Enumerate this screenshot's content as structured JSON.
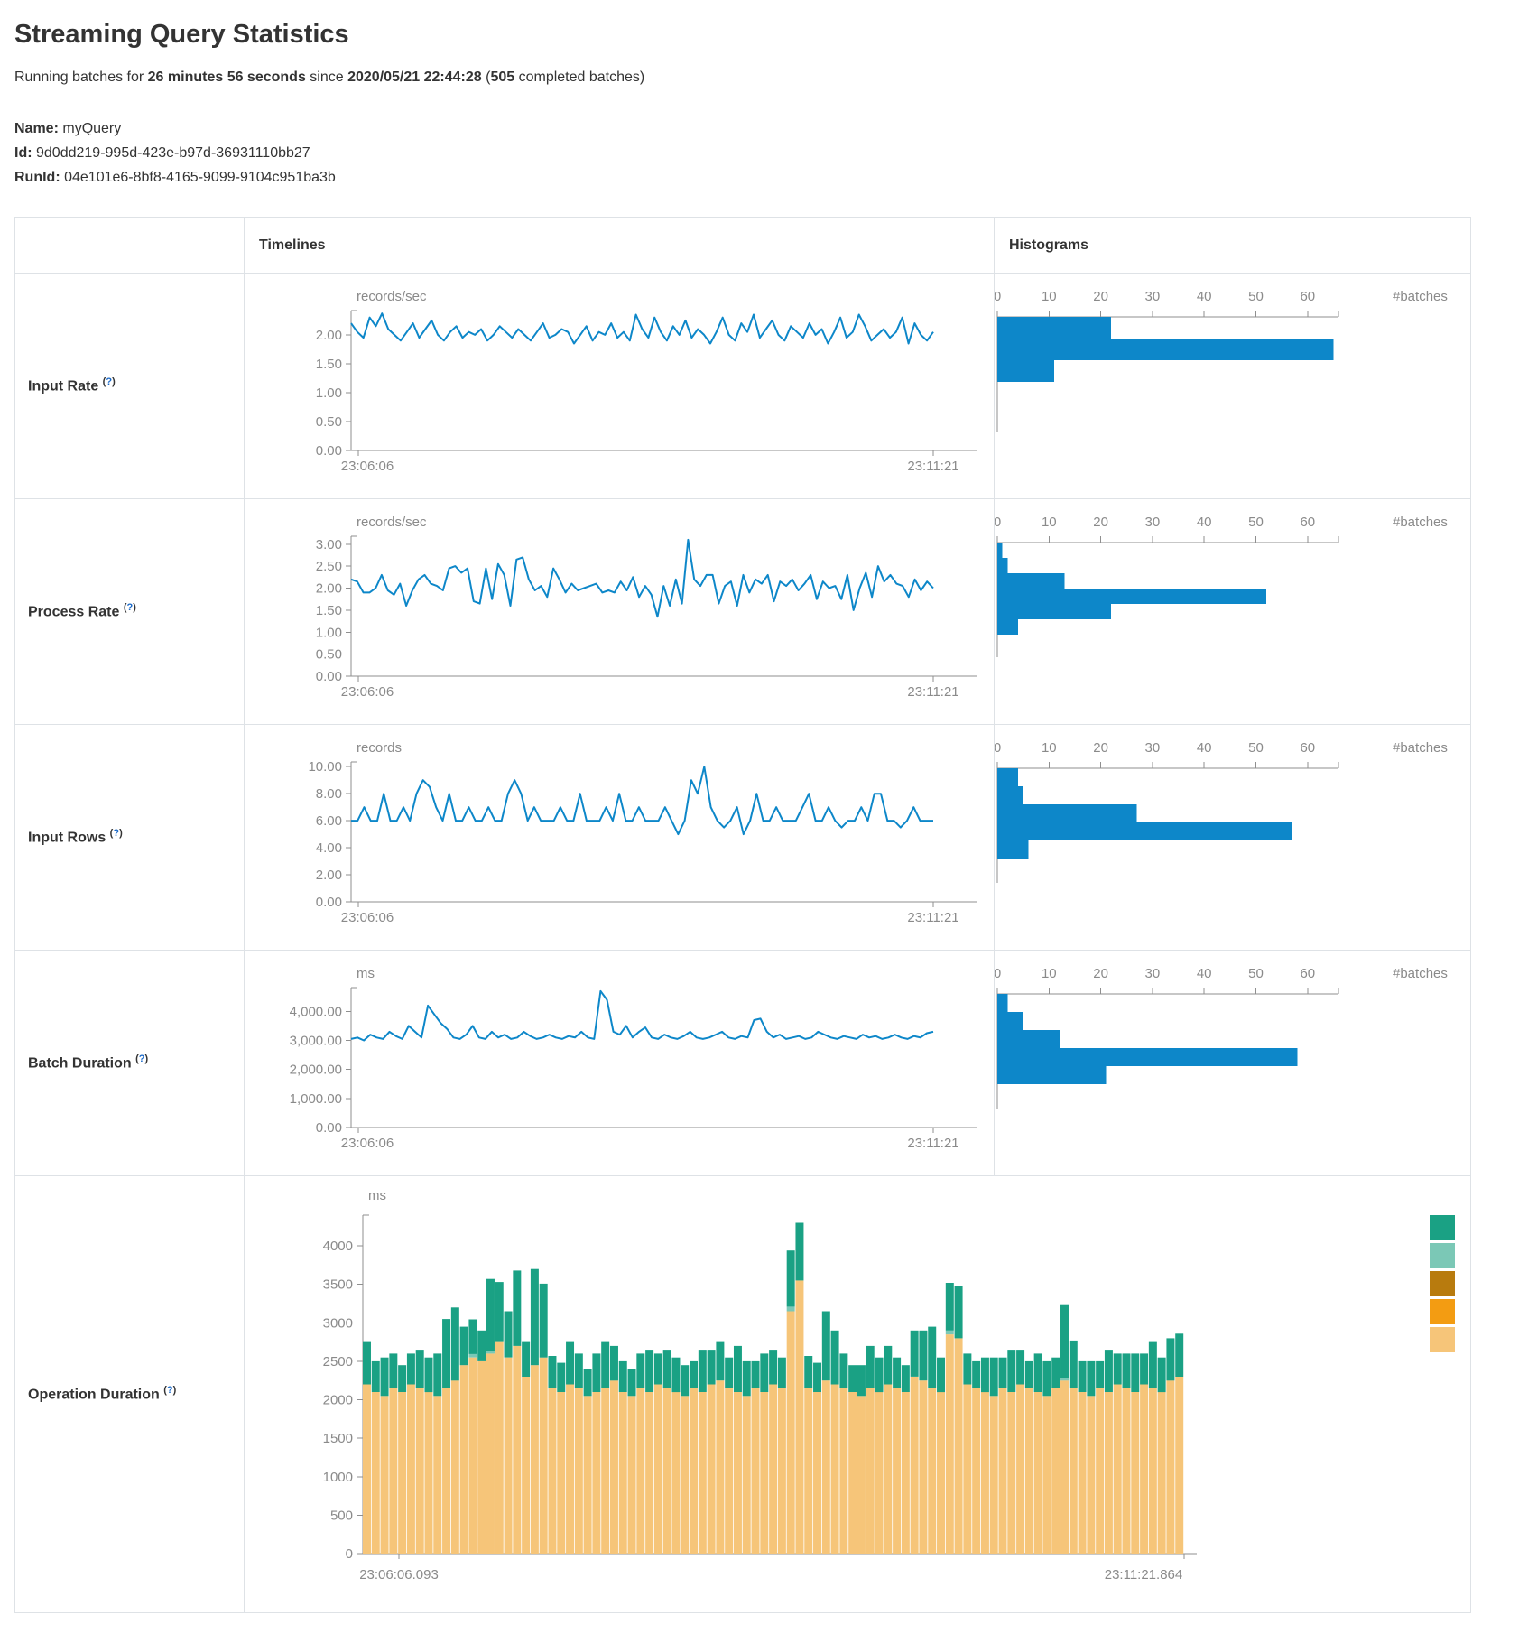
{
  "page": {
    "title": "Streaming Query Statistics",
    "running_prefix": "Running batches for ",
    "duration": "26 minutes 56 seconds",
    "since_text": " since ",
    "start_time": "2020/05/21 22:44:28",
    "batches_open": " (",
    "batches_count": "505",
    "batches_suffix": " completed batches)",
    "name_label": "Name:",
    "name_value": "myQuery",
    "id_label": "Id:",
    "id_value": "9d0dd219-995d-423e-b97d-36931110bb27",
    "runid_label": "RunId:",
    "runid_value": "04e101e6-8bf8-4165-9099-9104c951ba3b"
  },
  "table": {
    "col_timelines": "Timelines",
    "col_histograms": "Histograms",
    "help_open": "(",
    "help_mark": "?",
    "help_close": ")",
    "rows": [
      {
        "label": "Input Rate"
      },
      {
        "label": "Process Rate"
      },
      {
        "label": "Input Rows"
      },
      {
        "label": "Batch Duration"
      },
      {
        "label": "Operation Duration"
      }
    ]
  },
  "colors": {
    "line": "#0d87c9",
    "hist_bar": "#0d87c9",
    "axis": "#8f8f8f",
    "tick_label": "#8a8a8a",
    "op_tan": "#f6c579",
    "op_teal": "#7bc8b6",
    "op_green": "#1aa184"
  },
  "chart_data": [
    {
      "row": "Input Rate",
      "type": "line",
      "unit": "records/sec",
      "ytop": 2.42,
      "yticks": [
        [
          2,
          "2.00"
        ],
        [
          1.5,
          "1.50"
        ],
        [
          1,
          "1.00"
        ],
        [
          0.5,
          "0.50"
        ],
        [
          0,
          "0.00"
        ]
      ],
      "xlabels": [
        "23:06:06",
        "23:11:21"
      ],
      "values": [
        2.2,
        2.05,
        1.95,
        2.3,
        2.15,
        2.37,
        2.1,
        2.0,
        1.9,
        2.05,
        2.2,
        1.95,
        2.1,
        2.25,
        2.0,
        1.9,
        2.05,
        2.15,
        1.95,
        2.05,
        2.0,
        2.1,
        1.9,
        2.0,
        2.15,
        2.05,
        1.95,
        2.1,
        2.0,
        1.9,
        2.05,
        2.2,
        1.95,
        2.0,
        2.1,
        2.05,
        1.85,
        2.0,
        2.15,
        1.9,
        2.05,
        2.0,
        2.2,
        1.95,
        2.05,
        1.9,
        2.35,
        2.1,
        1.95,
        2.3,
        2.05,
        1.9,
        2.15,
        2.0,
        2.25,
        1.95,
        2.1,
        2.0,
        1.85,
        2.05,
        2.3,
        2.0,
        1.9,
        2.2,
        2.05,
        2.35,
        1.95,
        2.1,
        2.25,
        2.0,
        1.9,
        2.15,
        2.05,
        1.95,
        2.2,
        2.0,
        2.1,
        1.85,
        2.05,
        2.3,
        1.95,
        2.05,
        2.35,
        2.15,
        1.9,
        2.0,
        2.1,
        1.95,
        2.05,
        2.3,
        1.85,
        2.2,
        2.0,
        1.9,
        2.05
      ],
      "histogram": {
        "bins": [
          22,
          65,
          11
        ],
        "xticks": [
          0,
          10,
          20,
          30,
          40,
          50,
          60
        ],
        "xmax": 66,
        "unit": "#batches"
      }
    },
    {
      "row": "Process Rate",
      "type": "line",
      "unit": "records/sec",
      "ytop": 3.18,
      "yticks": [
        [
          3,
          "3.00"
        ],
        [
          2.5,
          "2.50"
        ],
        [
          2,
          "2.00"
        ],
        [
          1.5,
          "1.50"
        ],
        [
          1,
          "1.00"
        ],
        [
          0.5,
          "0.50"
        ],
        [
          0,
          "0.00"
        ]
      ],
      "xlabels": [
        "23:06:06",
        "23:11:21"
      ],
      "values": [
        2.2,
        2.15,
        1.9,
        1.9,
        2.0,
        2.3,
        1.95,
        1.85,
        2.1,
        1.6,
        1.95,
        2.2,
        2.3,
        2.1,
        2.05,
        1.95,
        2.45,
        2.5,
        2.35,
        2.45,
        1.7,
        1.65,
        2.45,
        1.75,
        2.55,
        2.3,
        1.6,
        2.65,
        2.7,
        2.2,
        1.95,
        2.05,
        1.8,
        2.45,
        2.2,
        1.9,
        2.1,
        1.95,
        2.0,
        2.05,
        2.1,
        1.9,
        1.95,
        1.9,
        2.15,
        1.95,
        2.25,
        1.8,
        2.05,
        1.85,
        1.35,
        2.05,
        1.6,
        2.2,
        1.65,
        3.1,
        2.2,
        2.05,
        2.3,
        2.3,
        1.65,
        2.05,
        2.15,
        1.6,
        2.3,
        1.9,
        2.2,
        2.1,
        2.3,
        1.7,
        2.15,
        2.05,
        2.2,
        1.95,
        2.1,
        2.3,
        1.75,
        2.15,
        2.0,
        2.05,
        1.75,
        2.3,
        1.5,
        2.0,
        2.35,
        1.8,
        2.5,
        2.15,
        2.3,
        2.1,
        2.05,
        1.8,
        2.2,
        1.95,
        2.15,
        2.0
      ],
      "histogram": {
        "bins": [
          1,
          2,
          13,
          52,
          22,
          4
        ],
        "xticks": [
          0,
          10,
          20,
          30,
          40,
          50,
          60
        ],
        "xmax": 66,
        "unit": "#batches"
      }
    },
    {
      "row": "Input Rows",
      "type": "line",
      "unit": "records",
      "ytop": 10.35,
      "yticks": [
        [
          10,
          "10.00"
        ],
        [
          8,
          "8.00"
        ],
        [
          6,
          "6.00"
        ],
        [
          4,
          "4.00"
        ],
        [
          2,
          "2.00"
        ],
        [
          0,
          "0.00"
        ]
      ],
      "xlabels": [
        "23:06:06",
        "23:11:21"
      ],
      "values": [
        6,
        6,
        7,
        6,
        6,
        8,
        6,
        6,
        7,
        6,
        8,
        9,
        8.5,
        7,
        6,
        8,
        6,
        6,
        7,
        6,
        6,
        7,
        6,
        6,
        8,
        9,
        8,
        6,
        7,
        6,
        6,
        6,
        7,
        6,
        6,
        8,
        6,
        6,
        6,
        7,
        6,
        8,
        6,
        6,
        7,
        6,
        6,
        6,
        7,
        6,
        5,
        6,
        9,
        8,
        10,
        7,
        6,
        5.5,
        6,
        7,
        5,
        6,
        8,
        6,
        6,
        7,
        6,
        6,
        6,
        7,
        8,
        6,
        6,
        7,
        6,
        5.5,
        6,
        6,
        7,
        6,
        8,
        8,
        6,
        6,
        5.5,
        6,
        7,
        6,
        6,
        6
      ],
      "histogram": {
        "bins": [
          4,
          5,
          27,
          57,
          6
        ],
        "xticks": [
          0,
          10,
          20,
          30,
          40,
          50,
          60
        ],
        "xmax": 66,
        "unit": "#batches"
      }
    },
    {
      "row": "Batch Duration",
      "type": "line",
      "unit": "ms",
      "ytop": 4820,
      "yticks": [
        [
          4000,
          "4,000.00"
        ],
        [
          3000,
          "3,000.00"
        ],
        [
          2000,
          "2,000.00"
        ],
        [
          1000,
          "1,000.00"
        ],
        [
          0,
          "0.00"
        ]
      ],
      "xlabels": [
        "23:06:06",
        "23:11:21"
      ],
      "values": [
        3050,
        3100,
        3000,
        3200,
        3100,
        3050,
        3300,
        3150,
        3050,
        3500,
        3300,
        3100,
        4200,
        3900,
        3600,
        3400,
        3100,
        3050,
        3200,
        3500,
        3100,
        3050,
        3300,
        3100,
        3200,
        3050,
        3100,
        3300,
        3150,
        3050,
        3100,
        3200,
        3100,
        3050,
        3150,
        3100,
        3300,
        3100,
        3050,
        4700,
        4400,
        3300,
        3200,
        3500,
        3100,
        3300,
        3450,
        3100,
        3050,
        3200,
        3100,
        3050,
        3150,
        3300,
        3100,
        3050,
        3100,
        3200,
        3300,
        3100,
        3050,
        3150,
        3100,
        3700,
        3750,
        3300,
        3100,
        3200,
        3050,
        3100,
        3150,
        3050,
        3100,
        3300,
        3200,
        3100,
        3050,
        3150,
        3100,
        3050,
        3200,
        3100,
        3150,
        3050,
        3100,
        3200,
        3100,
        3050,
        3150,
        3100,
        3250,
        3300
      ],
      "histogram": {
        "bins": [
          2,
          5,
          12,
          58,
          21
        ],
        "xticks": [
          0,
          10,
          20,
          30,
          40,
          50,
          60
        ],
        "xmax": 66,
        "unit": "#batches"
      }
    },
    {
      "row": "Operation Duration",
      "type": "stacked-bar",
      "unit": "ms",
      "ytop": 4400,
      "yticks": [
        [
          4000,
          "4000"
        ],
        [
          3500,
          "3500"
        ],
        [
          3000,
          "3000"
        ],
        [
          2500,
          "2500"
        ],
        [
          2000,
          "2000"
        ],
        [
          1500,
          "1500"
        ],
        [
          1000,
          "1000"
        ],
        [
          500,
          "500"
        ],
        [
          0,
          "0"
        ]
      ],
      "xlabels": [
        "23:06:06.093",
        "23:11:21.864"
      ],
      "bars": [
        [
          2200,
          550
        ],
        [
          2100,
          400
        ],
        [
          2050,
          500
        ],
        [
          2150,
          450
        ],
        [
          2100,
          350
        ],
        [
          2200,
          400
        ],
        [
          2150,
          500
        ],
        [
          2100,
          450
        ],
        [
          2050,
          550
        ],
        [
          2150,
          900
        ],
        [
          2250,
          950
        ],
        [
          2450,
          500
        ],
        [
          2550,
          450
        ],
        [
          2500,
          400
        ],
        [
          2600,
          930
        ],
        [
          2750,
          780
        ],
        [
          2550,
          600
        ],
        [
          2700,
          980
        ],
        [
          2300,
          450
        ],
        [
          2450,
          1250
        ],
        [
          2550,
          960
        ],
        [
          2150,
          420
        ],
        [
          2100,
          380
        ],
        [
          2200,
          550
        ],
        [
          2150,
          450
        ],
        [
          2050,
          350
        ],
        [
          2100,
          500
        ],
        [
          2150,
          600
        ],
        [
          2250,
          450
        ],
        [
          2100,
          400
        ],
        [
          2050,
          350
        ],
        [
          2150,
          450
        ],
        [
          2100,
          550
        ],
        [
          2200,
          400
        ],
        [
          2150,
          500
        ],
        [
          2100,
          450
        ],
        [
          2050,
          400
        ],
        [
          2150,
          350
        ],
        [
          2100,
          550
        ],
        [
          2200,
          450
        ],
        [
          2250,
          500
        ],
        [
          2150,
          400
        ],
        [
          2100,
          600
        ],
        [
          2050,
          450
        ],
        [
          2150,
          350
        ],
        [
          2100,
          500
        ],
        [
          2200,
          450
        ],
        [
          2150,
          400
        ],
        [
          3150,
          730
        ],
        [
          3550,
          750
        ],
        [
          2150,
          420
        ],
        [
          2100,
          380
        ],
        [
          2250,
          900
        ],
        [
          2200,
          700
        ],
        [
          2150,
          450
        ],
        [
          2100,
          350
        ],
        [
          2050,
          400
        ],
        [
          2150,
          550
        ],
        [
          2100,
          450
        ],
        [
          2200,
          500
        ],
        [
          2150,
          400
        ],
        [
          2100,
          350
        ],
        [
          2300,
          600
        ],
        [
          2250,
          650
        ],
        [
          2150,
          800
        ],
        [
          2100,
          450
        ],
        [
          2850,
          620
        ],
        [
          2800,
          680
        ],
        [
          2200,
          400
        ],
        [
          2150,
          350
        ],
        [
          2100,
          450
        ],
        [
          2050,
          500
        ],
        [
          2150,
          400
        ],
        [
          2100,
          550
        ],
        [
          2200,
          450
        ],
        [
          2150,
          350
        ],
        [
          2100,
          500
        ],
        [
          2050,
          450
        ],
        [
          2150,
          400
        ],
        [
          2250,
          950
        ],
        [
          2150,
          620
        ],
        [
          2100,
          400
        ],
        [
          2050,
          450
        ],
        [
          2150,
          350
        ],
        [
          2100,
          550
        ],
        [
          2200,
          400
        ],
        [
          2150,
          450
        ],
        [
          2100,
          500
        ],
        [
          2200,
          400
        ],
        [
          2150,
          600
        ],
        [
          2100,
          450
        ],
        [
          2250,
          550
        ],
        [
          2300,
          560
        ]
      ],
      "teal": {
        "12": 45,
        "14": 40,
        "48": 60,
        "66": 50,
        "79": 30
      },
      "legend_colors": [
        "#1aa184",
        "#7bc8b6",
        "#b87b0e",
        "#f39c12",
        "#f6c579"
      ]
    }
  ]
}
